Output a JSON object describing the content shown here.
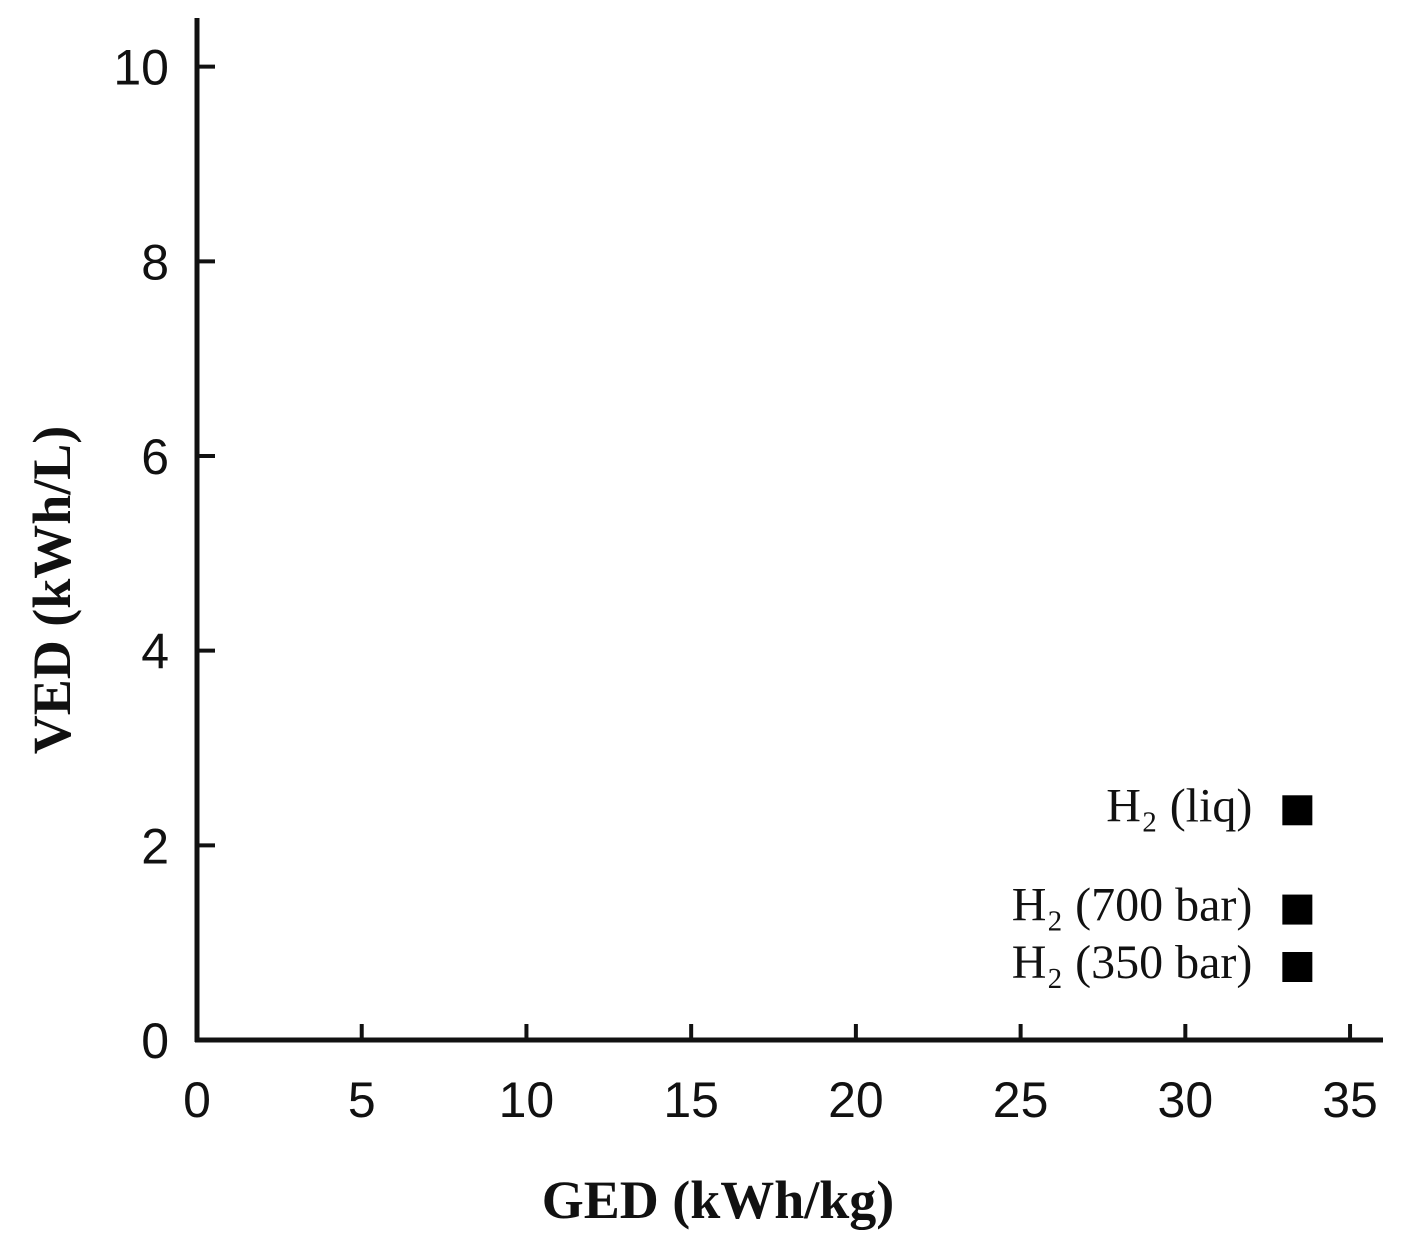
{
  "chart_data": {
    "type": "scatter",
    "x_label": "GED (kWh/kg)",
    "y_label": "VED (kWh/L)",
    "series": [
      {
        "name": "H₂ (liq)",
        "color": "#000000",
        "x": [
          33.4
        ],
        "values": [
          2.36
        ]
      },
      {
        "name": "H₂ (700 bar)",
        "color": "#000000",
        "x": [
          33.4
        ],
        "values": [
          1.34
        ]
      },
      {
        "name": "H₂ (350 bar)",
        "color": "#000000",
        "x": [
          33.4
        ],
        "values": [
          0.75
        ]
      }
    ],
    "xlim": [
      0,
      36
    ],
    "xticks": [
      0,
      5,
      10,
      15,
      20,
      25,
      30,
      35
    ],
    "ylim": [
      0,
      10.5
    ],
    "yticks": [
      0,
      2,
      4,
      6,
      8,
      10
    ],
    "grid": false
  }
}
